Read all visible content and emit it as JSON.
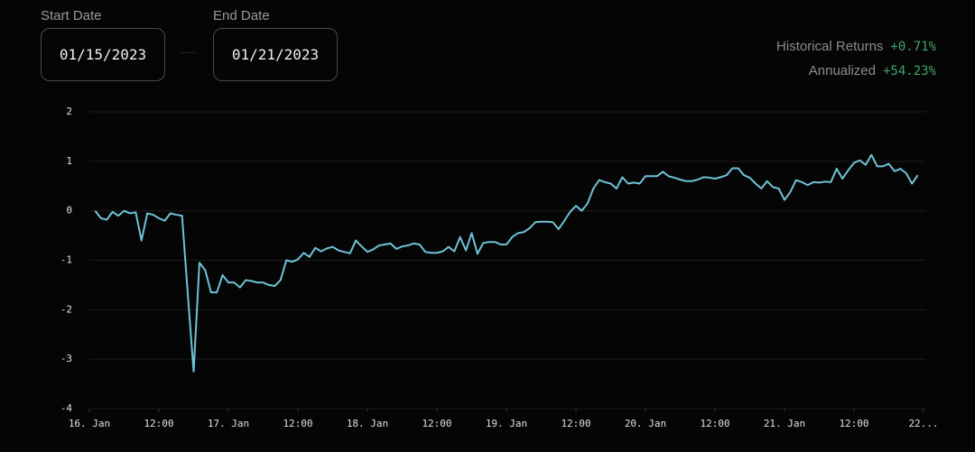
{
  "controls": {
    "start_label": "Start Date",
    "start_value": "01/15/2023",
    "end_label": "End Date",
    "end_value": "01/21/2023"
  },
  "stats": {
    "historical_label": "Historical Returns",
    "historical_value": "+0.71%",
    "annualized_label": "Annualized",
    "annualized_value": "+54.23%"
  },
  "chart_data": {
    "type": "line",
    "color": "#6ec3d8",
    "grid": true,
    "xlim": [
      0,
      144
    ],
    "xticks": [
      {
        "value": 0,
        "label": "16. Jan"
      },
      {
        "value": 12,
        "label": "12:00"
      },
      {
        "value": 24,
        "label": "17. Jan"
      },
      {
        "value": 36,
        "label": "12:00"
      },
      {
        "value": 48,
        "label": "18. Jan"
      },
      {
        "value": 60,
        "label": "12:00"
      },
      {
        "value": 72,
        "label": "19. Jan"
      },
      {
        "value": 84,
        "label": "12:00"
      },
      {
        "value": 96,
        "label": "20. Jan"
      },
      {
        "value": 108,
        "label": "12:00"
      },
      {
        "value": 120,
        "label": "21. Jan"
      },
      {
        "value": 132,
        "label": "12:00"
      },
      {
        "value": 144,
        "label": "22..."
      }
    ],
    "ylim": [
      -4,
      2
    ],
    "yticks": [
      -4,
      -3,
      -2,
      -1,
      0,
      1,
      2
    ],
    "x": [
      1,
      2,
      3,
      4,
      5,
      6,
      7,
      8,
      9,
      10,
      11,
      12,
      13,
      14,
      15,
      16,
      17,
      18,
      19,
      20,
      21,
      22,
      23,
      24,
      25,
      26,
      27,
      28,
      29,
      30,
      31,
      32,
      33,
      34,
      35,
      36,
      37,
      38,
      39,
      40,
      41,
      42,
      43,
      44,
      45,
      46,
      47,
      48,
      49,
      50,
      51,
      52,
      53,
      54,
      55,
      56,
      57,
      58,
      59,
      60,
      61,
      62,
      63,
      64,
      65,
      66,
      67,
      68,
      69,
      70,
      71,
      72,
      73,
      74,
      75,
      76,
      77,
      78,
      79,
      80,
      81,
      82,
      83,
      84,
      85,
      86,
      87,
      88,
      89,
      90,
      91,
      92,
      93,
      94,
      95,
      96,
      97,
      98,
      99,
      100,
      101,
      102,
      103,
      104,
      105,
      106,
      107,
      108,
      109,
      110,
      111,
      112,
      113,
      114,
      115,
      116,
      117,
      118,
      119,
      120,
      121,
      122,
      123,
      124,
      125,
      126,
      127,
      128,
      129,
      130,
      131,
      132,
      133,
      134,
      135,
      136,
      137,
      138,
      139,
      140,
      141,
      142,
      143
    ],
    "values": [
      0,
      -0.15,
      -0.18,
      -0.02,
      -0.1,
      0,
      -0.05,
      -0.03,
      -0.6,
      -0.05,
      -0.08,
      -0.15,
      -0.2,
      -0.05,
      -0.08,
      -0.1,
      -1.7,
      -3.25,
      -1.05,
      -1.2,
      -1.65,
      -1.65,
      -1.3,
      -1.45,
      -1.45,
      -1.55,
      -1.4,
      -1.42,
      -1.45,
      -1.45,
      -1.5,
      -1.52,
      -1.4,
      -1.0,
      -1.03,
      -0.98,
      -0.85,
      -0.93,
      -0.75,
      -0.82,
      -0.76,
      -0.73,
      -0.8,
      -0.83,
      -0.86,
      -0.6,
      -0.72,
      -0.83,
      -0.78,
      -0.7,
      -0.68,
      -0.66,
      -0.77,
      -0.72,
      -0.7,
      -0.66,
      -0.68,
      -0.83,
      -0.85,
      -0.85,
      -0.82,
      -0.73,
      -0.82,
      -0.53,
      -0.8,
      -0.45,
      -0.87,
      -0.65,
      -0.63,
      -0.63,
      -0.68,
      -0.68,
      -0.53,
      -0.45,
      -0.43,
      -0.35,
      -0.23,
      -0.22,
      -0.22,
      -0.23,
      -0.37,
      -0.2,
      -0.02,
      0.1,
      0,
      0.15,
      0.45,
      0.62,
      0.58,
      0.55,
      0.45,
      0.68,
      0.55,
      0.57,
      0.55,
      0.7,
      0.7,
      0.7,
      0.79,
      0.7,
      0.67,
      0.63,
      0.6,
      0.6,
      0.63,
      0.68,
      0.67,
      0.65,
      0.68,
      0.72,
      0.86,
      0.86,
      0.72,
      0.67,
      0.55,
      0.45,
      0.6,
      0.48,
      0.45,
      0.22,
      0.38,
      0.62,
      0.58,
      0.52,
      0.58,
      0.57,
      0.59,
      0.58,
      0.85,
      0.65,
      0.82,
      0.97,
      1.02,
      0.93,
      1.13,
      0.9,
      0.9,
      0.95,
      0.8,
      0.85,
      0.76,
      0.55,
      0.72
    ]
  }
}
